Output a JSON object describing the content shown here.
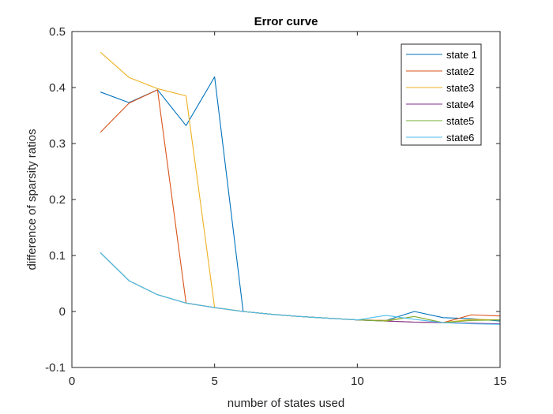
{
  "chart_data": {
    "type": "line",
    "title": "Error curve",
    "xlabel": "number of states used",
    "ylabel": "difference of sparsity ratios",
    "xlim": [
      0,
      15
    ],
    "ylim": [
      -0.1,
      0.5
    ],
    "xticks": [
      0,
      5,
      10,
      15
    ],
    "xtick_labels": [
      "0",
      "5",
      "10",
      "15"
    ],
    "yticks": [
      -0.1,
      0,
      0.1,
      0.2,
      0.3,
      0.4,
      0.5
    ],
    "ytick_labels": [
      "-0.1",
      "0",
      "0.1",
      "0.2",
      "0.3",
      "0.4",
      "0.5"
    ],
    "grid": false,
    "legend_position": "top-right",
    "series": [
      {
        "name": "state 1",
        "color": "#0072BD",
        "x": [
          1,
          2,
          3,
          4,
          5,
          6,
          7,
          8,
          9,
          10,
          11,
          12,
          13,
          14,
          15
        ],
        "y": [
          0.392,
          0.373,
          0.396,
          0.332,
          0.419,
          0.0,
          -0.005,
          -0.009,
          -0.012,
          -0.015,
          -0.016,
          0.0,
          -0.011,
          -0.013,
          -0.017
        ]
      },
      {
        "name": "state2",
        "color": "#D95319",
        "x": [
          1,
          2,
          3,
          4,
          5,
          6,
          7,
          8,
          9,
          10,
          11,
          12,
          13,
          14,
          15
        ],
        "y": [
          0.32,
          0.372,
          0.396,
          0.015,
          0.007,
          0.0,
          -0.005,
          -0.009,
          -0.012,
          -0.015,
          -0.017,
          -0.019,
          -0.02,
          -0.006,
          -0.008
        ]
      },
      {
        "name": "state3",
        "color": "#EDB120",
        "x": [
          1,
          2,
          3,
          4,
          5,
          6,
          7,
          8,
          9,
          10,
          11,
          12,
          13,
          14,
          15
        ],
        "y": [
          0.463,
          0.418,
          0.398,
          0.385,
          0.007,
          0.0,
          -0.005,
          -0.009,
          -0.012,
          -0.015,
          -0.016,
          -0.009,
          -0.02,
          -0.014,
          -0.015
        ]
      },
      {
        "name": "state4",
        "color": "#7E2F8E",
        "x": [
          1,
          2,
          3,
          4,
          5,
          6,
          7,
          8,
          9,
          10,
          11,
          12,
          13,
          14,
          15
        ],
        "y": [
          0.105,
          0.055,
          0.03,
          0.015,
          0.007,
          0.0,
          -0.005,
          -0.009,
          -0.012,
          -0.015,
          -0.017,
          -0.019,
          -0.02,
          -0.021,
          -0.022
        ]
      },
      {
        "name": "state5",
        "color": "#77AC30",
        "x": [
          1,
          2,
          3,
          4,
          5,
          6,
          7,
          8,
          9,
          10,
          11,
          12,
          13,
          14,
          15
        ],
        "y": [
          0.105,
          0.055,
          0.03,
          0.015,
          0.007,
          0.0,
          -0.005,
          -0.009,
          -0.012,
          -0.015,
          -0.017,
          -0.009,
          -0.02,
          -0.016,
          -0.015
        ]
      },
      {
        "name": "state6",
        "color": "#4DBEEE",
        "x": [
          1,
          2,
          3,
          4,
          5,
          6,
          7,
          8,
          9,
          10,
          11,
          12,
          13,
          14,
          15
        ],
        "y": [
          0.105,
          0.055,
          0.03,
          0.015,
          0.007,
          0.0,
          -0.005,
          -0.009,
          -0.012,
          -0.015,
          -0.007,
          -0.014,
          -0.02,
          -0.022,
          -0.023
        ]
      }
    ]
  }
}
